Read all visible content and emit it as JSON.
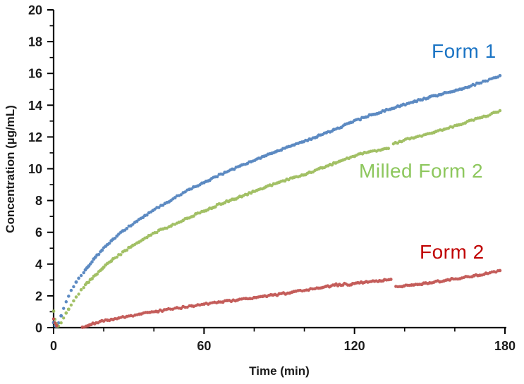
{
  "chart_data": {
    "type": "scatter",
    "title": "",
    "xlabel": "Time (min)",
    "ylabel": "Concentration (µg/mL)",
    "xlim": [
      0,
      180
    ],
    "ylim": [
      0,
      20
    ],
    "x_ticks_major": [
      0,
      60,
      120,
      180
    ],
    "x_ticks_minor": [
      20,
      40,
      80,
      100,
      140,
      160
    ],
    "y_ticks_major": [
      0,
      2,
      4,
      6,
      8,
      10,
      12,
      14,
      16,
      18,
      20
    ],
    "y_ticks_minor": [
      1,
      3,
      5,
      7,
      9,
      11,
      13,
      15,
      17,
      19
    ],
    "grid": false,
    "legend_position": "inline-annotations",
    "series": [
      {
        "name": "Form 1",
        "label": "Form 1",
        "color": "#4F81BD",
        "label_color": "#1B74C4",
        "segments": [
          [
            [
              0,
              0.3
            ],
            [
              0.5,
              0.15
            ],
            [
              1,
              0.1
            ],
            [
              1.5,
              0.15
            ],
            [
              2,
              0.3
            ],
            [
              3,
              0.75
            ],
            [
              4,
              1.2
            ],
            [
              5,
              1.6
            ],
            [
              6,
              1.95
            ],
            [
              7,
              2.3
            ],
            [
              8,
              2.6
            ],
            [
              9,
              2.85
            ],
            [
              10,
              3.1
            ],
            [
              11,
              3.3
            ],
            [
              12,
              3.5
            ],
            [
              14,
              3.9
            ],
            [
              16,
              4.3
            ],
            [
              18,
              4.65
            ],
            [
              20,
              5.0
            ],
            [
              23,
              5.45
            ],
            [
              26,
              5.85
            ],
            [
              30,
              6.35
            ],
            [
              34,
              6.8
            ],
            [
              38,
              7.2
            ],
            [
              42,
              7.6
            ],
            [
              46,
              7.95
            ],
            [
              50,
              8.35
            ],
            [
              55,
              8.75
            ],
            [
              60,
              9.15
            ],
            [
              66,
              9.6
            ],
            [
              72,
              10.0
            ],
            [
              78,
              10.4
            ],
            [
              84,
              10.8
            ],
            [
              90,
              11.15
            ],
            [
              96,
              11.5
            ],
            [
              102,
              11.85
            ],
            [
              108,
              12.2
            ],
            [
              114,
              12.6
            ],
            [
              120,
              13.0
            ],
            [
              126,
              13.35
            ],
            [
              132,
              13.65
            ],
            [
              138,
              13.95
            ],
            [
              144,
              14.25
            ],
            [
              150,
              14.5
            ],
            [
              156,
              14.75
            ],
            [
              162,
              15.0
            ],
            [
              168,
              15.3
            ],
            [
              173,
              15.55
            ],
            [
              178,
              15.85
            ]
          ]
        ]
      },
      {
        "name": "Milled Form 2",
        "label": "Milled Form 2",
        "color": "#9BBB59",
        "label_color": "#8DC75D",
        "segments": [
          [
            [
              0,
              1.0
            ],
            [
              0.5,
              0.55
            ],
            [
              1,
              0.25
            ],
            [
              1.5,
              0.12
            ],
            [
              2,
              0.1
            ],
            [
              3,
              0.35
            ],
            [
              4,
              0.65
            ],
            [
              5,
              0.95
            ],
            [
              6,
              1.2
            ],
            [
              7,
              1.45
            ],
            [
              8,
              1.7
            ],
            [
              9,
              1.9
            ],
            [
              10,
              2.15
            ],
            [
              11,
              2.35
            ],
            [
              12,
              2.55
            ],
            [
              14,
              2.9
            ],
            [
              16,
              3.2
            ],
            [
              18,
              3.5
            ],
            [
              20,
              3.8
            ],
            [
              23,
              4.2
            ],
            [
              26,
              4.55
            ],
            [
              30,
              5.0
            ],
            [
              34,
              5.4
            ],
            [
              38,
              5.75
            ],
            [
              42,
              6.1
            ],
            [
              46,
              6.35
            ],
            [
              50,
              6.65
            ],
            [
              55,
              7.0
            ],
            [
              60,
              7.35
            ],
            [
              66,
              7.75
            ],
            [
              72,
              8.1
            ],
            [
              78,
              8.45
            ],
            [
              84,
              8.8
            ],
            [
              90,
              9.15
            ],
            [
              96,
              9.45
            ],
            [
              102,
              9.75
            ],
            [
              108,
              10.1
            ],
            [
              114,
              10.45
            ],
            [
              120,
              10.8
            ],
            [
              124,
              11.0
            ],
            [
              128,
              11.1
            ],
            [
              133.5,
              11.3
            ]
          ],
          [
            [
              135.5,
              11.55
            ],
            [
              138,
              11.7
            ],
            [
              142,
              11.9
            ],
            [
              146,
              12.05
            ],
            [
              150,
              12.25
            ],
            [
              155,
              12.45
            ],
            [
              160,
              12.7
            ],
            [
              165,
              12.95
            ],
            [
              170,
              13.2
            ],
            [
              174,
              13.4
            ],
            [
              178,
              13.65
            ]
          ]
        ]
      },
      {
        "name": "Form 2",
        "label": "Form 2",
        "color": "#C0504D",
        "label_color": "#C00000",
        "segments": [
          [
            [
              0,
              0.55
            ],
            [
              0.6,
              0.32
            ],
            [
              1.2,
              0.15
            ]
          ],
          [
            [
              11.5,
              0.03
            ],
            [
              13,
              0.1
            ],
            [
              15,
              0.22
            ],
            [
              17,
              0.3
            ],
            [
              20,
              0.42
            ],
            [
              23,
              0.52
            ],
            [
              26,
              0.6
            ],
            [
              30,
              0.72
            ],
            [
              35,
              0.87
            ],
            [
              40,
              1.0
            ],
            [
              45,
              1.12
            ],
            [
              50,
              1.24
            ],
            [
              55,
              1.35
            ],
            [
              60,
              1.47
            ],
            [
              65,
              1.58
            ],
            [
              70,
              1.68
            ],
            [
              75,
              1.78
            ],
            [
              80,
              1.88
            ],
            [
              85,
              1.98
            ],
            [
              90,
              2.1
            ],
            [
              95,
              2.22
            ],
            [
              100,
              2.35
            ],
            [
              105,
              2.48
            ],
            [
              108,
              2.55
            ],
            [
              110,
              2.6
            ],
            [
              112,
              2.72
            ],
            [
              114,
              2.68
            ],
            [
              116,
              2.75
            ],
            [
              118,
              2.7
            ],
            [
              120,
              2.78
            ],
            [
              122,
              2.85
            ],
            [
              124,
              2.82
            ],
            [
              126,
              2.92
            ],
            [
              128,
              2.88
            ],
            [
              130,
              2.95
            ],
            [
              132,
              3.0
            ],
            [
              134.5,
              3.0
            ]
          ],
          [
            [
              136.5,
              2.58
            ],
            [
              139,
              2.62
            ],
            [
              142,
              2.68
            ],
            [
              146,
              2.75
            ],
            [
              150,
              2.83
            ],
            [
              154,
              2.92
            ],
            [
              158,
              3.02
            ],
            [
              162,
              3.12
            ],
            [
              166,
              3.22
            ],
            [
              170,
              3.33
            ],
            [
              174,
              3.44
            ],
            [
              178,
              3.57
            ]
          ]
        ]
      }
    ],
    "axis_color": "#000000"
  }
}
